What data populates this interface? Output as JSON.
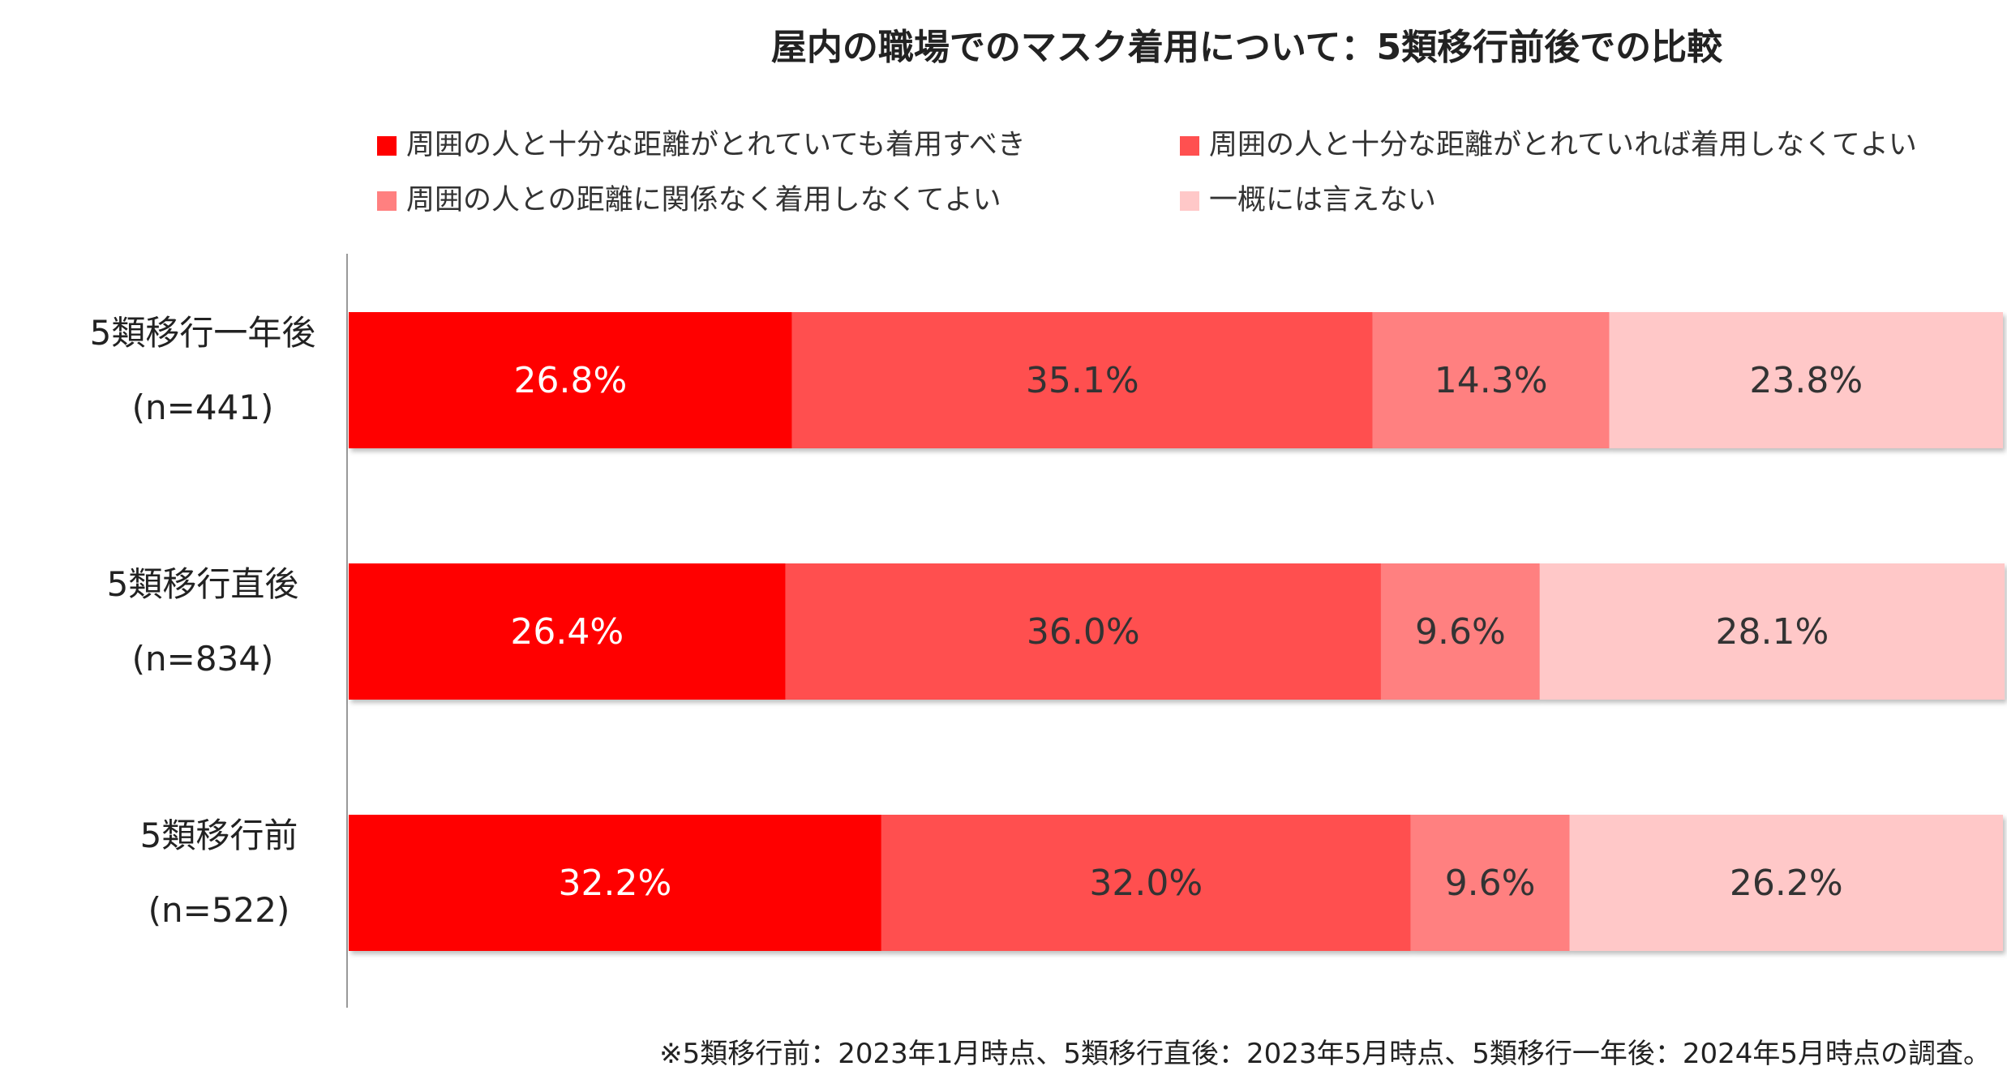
{
  "chart_data": {
    "type": "bar",
    "orientation": "horizontal",
    "stacked": true,
    "title": "屋内の職場でのマスク着用について：5類移行前後での比較",
    "categories": [
      {
        "label": "5類移行一年後",
        "n": "(n=441)"
      },
      {
        "label": "5類移行直後",
        "n": "(n=834)"
      },
      {
        "label": "5類移行前",
        "n": "(n=522)"
      }
    ],
    "series": [
      {
        "name": "周囲の人と十分な距離がとれていても着用すべき",
        "color": "#ff0000",
        "values": [
          26.8,
          26.4,
          32.2
        ]
      },
      {
        "name": "周囲の人と十分な距離がとれていれば着用しなくてよい",
        "color": "#ff5050",
        "values": [
          35.1,
          36.0,
          32.0
        ]
      },
      {
        "name": "周囲の人との距離に関係なく着用しなくてよい",
        "color": "#ff8080",
        "values": [
          14.3,
          9.6,
          9.6
        ]
      },
      {
        "name": "一概には言えない",
        "color": "#ffc8c8",
        "values": [
          23.8,
          28.1,
          26.2
        ]
      }
    ],
    "value_suffix": "%",
    "xlim": [
      0,
      100
    ],
    "grid": false,
    "legend_position": "top",
    "data_label_color": "#ffffff",
    "data_label_color_light": "#333333"
  },
  "footnote": "※5類移行前：2023年1月時点、5類移行直後：2023年5月時点、5類移行一年後：2024年5月時点の調査。"
}
